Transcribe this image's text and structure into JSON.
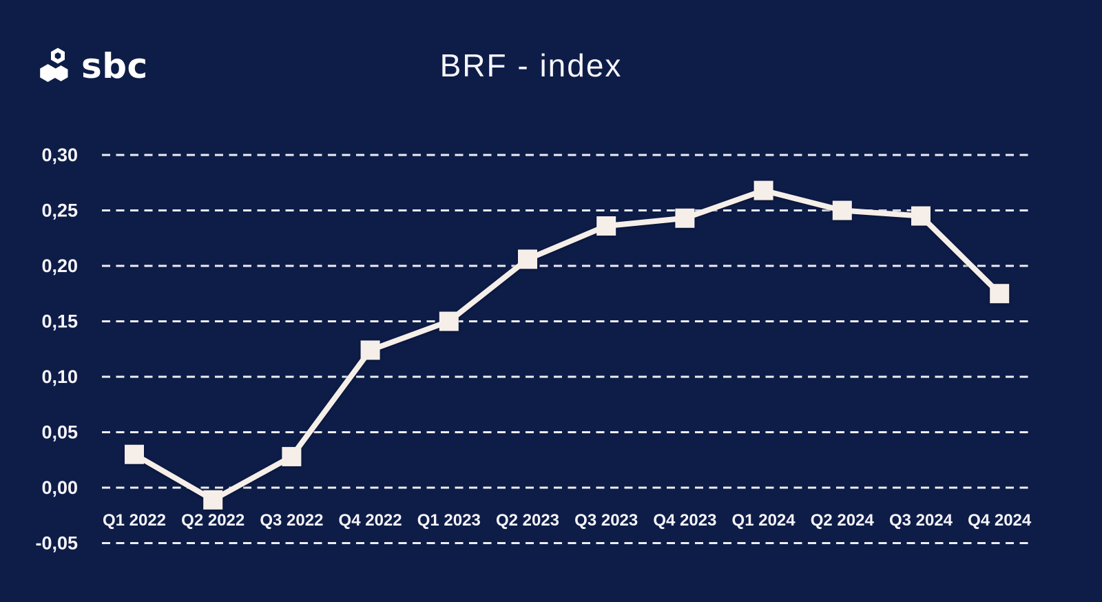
{
  "logo": {
    "text": "sbc",
    "icon": "sbc-hexagons-icon"
  },
  "header": {
    "title": "BRF - index"
  },
  "colors": {
    "background": "#0e1d48",
    "series": "#f6efe9",
    "grid": "#edeef2",
    "axis_text": "#f6f4f8",
    "title_text": "#f7f6fa"
  },
  "chart_data": {
    "type": "line",
    "title": "BRF - index",
    "categories": [
      "Q1 2022",
      "Q2 2022",
      "Q3 2022",
      "Q4 2022",
      "Q1 2023",
      "Q2 2023",
      "Q3 2023",
      "Q4 2023",
      "Q1 2024",
      "Q2 2024",
      "Q3 2024",
      "Q4 2024"
    ],
    "values": [
      0.03,
      -0.011,
      0.028,
      0.124,
      0.15,
      0.206,
      0.236,
      0.243,
      0.268,
      0.25,
      0.245,
      0.175
    ],
    "xlabel": "",
    "ylabel": "",
    "ylim": [
      -0.05,
      0.3
    ],
    "ytick_step": 0.05,
    "yticks": [
      {
        "label": "0,30",
        "value": 0.3
      },
      {
        "label": "0,25",
        "value": 0.25
      },
      {
        "label": "0,20",
        "value": 0.2
      },
      {
        "label": "0,15",
        "value": 0.15
      },
      {
        "label": "0,10",
        "value": 0.1
      },
      {
        "label": "0,05",
        "value": 0.05
      },
      {
        "label": "0,00",
        "value": 0.0
      },
      {
        "label": "-0,05",
        "value": -0.05
      }
    ],
    "grid": "horizontal-dashed",
    "legend_position": "none",
    "marker": "square",
    "decimal_separator": ","
  }
}
